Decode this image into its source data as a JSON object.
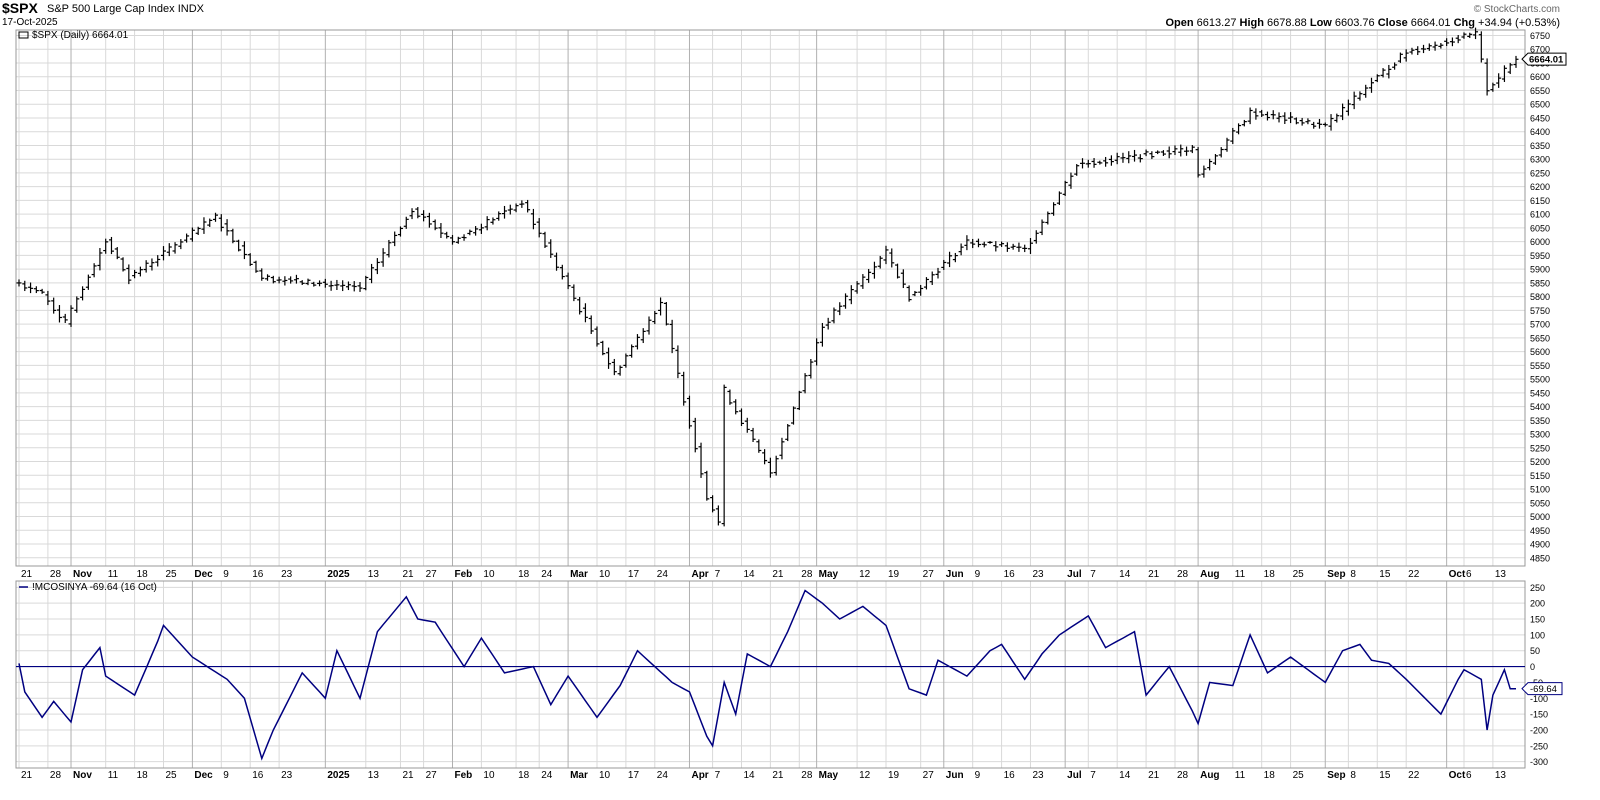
{
  "header": {
    "symbol": "$SPX",
    "name": "S&P 500 Large Cap Index",
    "exchange": "INDX",
    "date": "17-Oct-2025",
    "credit": "© StockCharts.com",
    "open_label": "Open",
    "open": "6613.27",
    "high_label": "High",
    "high": "6678.88",
    "low_label": "Low",
    "low": "6603.76",
    "close_label": "Close",
    "close": "6664.01",
    "chg_label": "Chg",
    "chg": "+34.94 (+0.53%)"
  },
  "colors": {
    "price_bars": "#000000",
    "indicator": "#000080",
    "grid": "#d9d9d9",
    "month_line": "#b0b0b0"
  },
  "chart_data": [
    {
      "type": "ohlc",
      "legend": "$SPX (Daily) 6664.01",
      "last_value_label": "6664.01",
      "y_ticks": [
        4850,
        4900,
        4950,
        5000,
        5050,
        5100,
        5150,
        5200,
        5250,
        5300,
        5350,
        5400,
        5450,
        5500,
        5550,
        5600,
        5650,
        5700,
        5750,
        5800,
        5850,
        5900,
        5950,
        6000,
        6050,
        6100,
        6150,
        6200,
        6250,
        6300,
        6350,
        6400,
        6450,
        6500,
        6550,
        6600,
        6650,
        6700,
        6750
      ],
      "ylim": [
        4820,
        6770
      ],
      "close_anchors": [
        {
          "date": "2024-10-21",
          "close": 5850
        },
        {
          "date": "2024-10-25",
          "close": 5810
        },
        {
          "date": "2024-10-31",
          "close": 5705
        },
        {
          "date": "2024-11-11",
          "close": 6005
        },
        {
          "date": "2024-11-15",
          "close": 5870
        },
        {
          "date": "2024-12-06",
          "close": 6090
        },
        {
          "date": "2024-12-18",
          "close": 5870
        },
        {
          "date": "2025-01-10",
          "close": 5830
        },
        {
          "date": "2025-01-23",
          "close": 6120
        },
        {
          "date": "2025-02-03",
          "close": 6000
        },
        {
          "date": "2025-02-19",
          "close": 6145
        },
        {
          "date": "2025-03-13",
          "close": 5520
        },
        {
          "date": "2025-03-25",
          "close": 5780
        },
        {
          "date": "2025-04-04",
          "close": 5075
        },
        {
          "date": "2025-04-08",
          "close": 4980
        },
        {
          "date": "2025-04-09",
          "close": 5460
        },
        {
          "date": "2025-04-21",
          "close": 5160
        },
        {
          "date": "2025-05-02",
          "close": 5690
        },
        {
          "date": "2025-05-12",
          "close": 5845
        },
        {
          "date": "2025-05-19",
          "close": 5960
        },
        {
          "date": "2025-05-23",
          "close": 5800
        },
        {
          "date": "2025-06-06",
          "close": 6000
        },
        {
          "date": "2025-06-20",
          "close": 5970
        },
        {
          "date": "2025-07-03",
          "close": 6280
        },
        {
          "date": "2025-07-31",
          "close": 6340
        },
        {
          "date": "2025-08-01",
          "close": 6240
        },
        {
          "date": "2025-08-14",
          "close": 6470
        },
        {
          "date": "2025-09-02",
          "close": 6420
        },
        {
          "date": "2025-09-12",
          "close": 6580
        },
        {
          "date": "2025-09-22",
          "close": 6690
        },
        {
          "date": "2025-10-08",
          "close": 6755
        },
        {
          "date": "2025-10-10",
          "close": 6555
        },
        {
          "date": "2025-10-17",
          "close": 6664
        }
      ]
    },
    {
      "type": "line",
      "legend": "!MCOSINYA -69.64 (16 Oct)",
      "last_value_label": "-69.64",
      "y_ticks": [
        -300,
        -250,
        -200,
        -150,
        -100,
        -50,
        0,
        50,
        100,
        150,
        200,
        250
      ],
      "ylim": [
        -320,
        270
      ],
      "zero_line": 0,
      "anchors": [
        {
          "date": "2024-10-21",
          "value": 10
        },
        {
          "date": "2024-10-22",
          "value": -80
        },
        {
          "date": "2024-10-25",
          "value": -160
        },
        {
          "date": "2024-10-29",
          "value": -110
        },
        {
          "date": "2024-11-01",
          "value": -175
        },
        {
          "date": "2024-11-05",
          "value": -10
        },
        {
          "date": "2024-11-08",
          "value": 60
        },
        {
          "date": "2024-11-11",
          "value": -30
        },
        {
          "date": "2024-11-18",
          "value": -90
        },
        {
          "date": "2024-11-22",
          "value": 80
        },
        {
          "date": "2024-11-25",
          "value": 130
        },
        {
          "date": "2024-12-02",
          "value": 30
        },
        {
          "date": "2024-12-10",
          "value": -40
        },
        {
          "date": "2024-12-13",
          "value": -100
        },
        {
          "date": "2024-12-18",
          "value": -290
        },
        {
          "date": "2024-12-20",
          "value": -200
        },
        {
          "date": "2024-12-27",
          "value": -20
        },
        {
          "date": "2025-01-02",
          "value": -100
        },
        {
          "date": "2025-01-06",
          "value": 50
        },
        {
          "date": "2025-01-10",
          "value": -100
        },
        {
          "date": "2025-01-15",
          "value": 110
        },
        {
          "date": "2025-01-22",
          "value": 220
        },
        {
          "date": "2025-01-24",
          "value": 150
        },
        {
          "date": "2025-01-29",
          "value": 140
        },
        {
          "date": "2025-02-05",
          "value": 0
        },
        {
          "date": "2025-02-10",
          "value": 90
        },
        {
          "date": "2025-02-14",
          "value": -20
        },
        {
          "date": "2025-02-21",
          "value": 0
        },
        {
          "date": "2025-02-26",
          "value": -120
        },
        {
          "date": "2025-03-03",
          "value": -30
        },
        {
          "date": "2025-03-10",
          "value": -160
        },
        {
          "date": "2025-03-14",
          "value": -60
        },
        {
          "date": "2025-03-19",
          "value": 50
        },
        {
          "date": "2025-03-27",
          "value": -50
        },
        {
          "date": "2025-04-01",
          "value": -80
        },
        {
          "date": "2025-04-04",
          "value": -220
        },
        {
          "date": "2025-04-07",
          "value": -250
        },
        {
          "date": "2025-04-09",
          "value": -50
        },
        {
          "date": "2025-04-11",
          "value": -150
        },
        {
          "date": "2025-04-15",
          "value": 40
        },
        {
          "date": "2025-04-21",
          "value": 0
        },
        {
          "date": "2025-04-24",
          "value": 110
        },
        {
          "date": "2025-04-29",
          "value": 240
        },
        {
          "date": "2025-05-02",
          "value": 200
        },
        {
          "date": "2025-05-07",
          "value": 150
        },
        {
          "date": "2025-05-13",
          "value": 190
        },
        {
          "date": "2025-05-19",
          "value": 130
        },
        {
          "date": "2025-05-23",
          "value": -70
        },
        {
          "date": "2025-05-28",
          "value": -90
        },
        {
          "date": "2025-05-30",
          "value": 20
        },
        {
          "date": "2025-06-06",
          "value": -30
        },
        {
          "date": "2025-06-12",
          "value": 50
        },
        {
          "date": "2025-06-16",
          "value": 70
        },
        {
          "date": "2025-06-20",
          "value": -40
        },
        {
          "date": "2025-06-25",
          "value": 40
        },
        {
          "date": "2025-06-30",
          "value": 100
        },
        {
          "date": "2025-07-07",
          "value": 160
        },
        {
          "date": "2025-07-10",
          "value": 60
        },
        {
          "date": "2025-07-17",
          "value": 110
        },
        {
          "date": "2025-07-21",
          "value": -90
        },
        {
          "date": "2025-07-25",
          "value": 0
        },
        {
          "date": "2025-07-31",
          "value": -140
        },
        {
          "date": "2025-08-01",
          "value": -180
        },
        {
          "date": "2025-08-05",
          "value": -50
        },
        {
          "date": "2025-08-11",
          "value": -60
        },
        {
          "date": "2025-08-14",
          "value": 100
        },
        {
          "date": "2025-08-19",
          "value": -20
        },
        {
          "date": "2025-08-25",
          "value": 30
        },
        {
          "date": "2025-09-02",
          "value": -50
        },
        {
          "date": "2025-09-05",
          "value": 50
        },
        {
          "date": "2025-09-10",
          "value": 70
        },
        {
          "date": "2025-09-12",
          "value": 20
        },
        {
          "date": "2025-09-17",
          "value": 10
        },
        {
          "date": "2025-09-22",
          "value": -40
        },
        {
          "date": "2025-09-30",
          "value": -150
        },
        {
          "date": "2025-10-03",
          "value": -40
        },
        {
          "date": "2025-10-06",
          "value": -10
        },
        {
          "date": "2025-10-09",
          "value": -40
        },
        {
          "date": "2025-10-10",
          "value": -200
        },
        {
          "date": "2025-10-13",
          "value": -90
        },
        {
          "date": "2025-10-15",
          "value": -10
        },
        {
          "date": "2025-10-16",
          "value": -70
        }
      ]
    }
  ],
  "x_axis": {
    "labels": [
      {
        "date": "2024-10-21",
        "text": "21"
      },
      {
        "date": "2024-10-28",
        "text": "28"
      },
      {
        "date": "2024-11-01",
        "text": "Nov",
        "month": true
      },
      {
        "date": "2024-11-11",
        "text": "11"
      },
      {
        "date": "2024-11-18",
        "text": "18"
      },
      {
        "date": "2024-11-25",
        "text": "25"
      },
      {
        "date": "2024-12-02",
        "text": "Dec",
        "month": true
      },
      {
        "date": "2024-12-09",
        "text": "9"
      },
      {
        "date": "2024-12-16",
        "text": "16"
      },
      {
        "date": "2024-12-23",
        "text": "23"
      },
      {
        "date": "2025-01-02",
        "text": "2025",
        "month": true
      },
      {
        "date": "2025-01-13",
        "text": "13"
      },
      {
        "date": "2025-01-21",
        "text": "21"
      },
      {
        "date": "2025-01-27",
        "text": "27"
      },
      {
        "date": "2025-02-03",
        "text": "Feb",
        "month": true
      },
      {
        "date": "2025-02-10",
        "text": "10"
      },
      {
        "date": "2025-02-18",
        "text": "18"
      },
      {
        "date": "2025-02-24",
        "text": "24"
      },
      {
        "date": "2025-03-03",
        "text": "Mar",
        "month": true
      },
      {
        "date": "2025-03-10",
        "text": "10"
      },
      {
        "date": "2025-03-17",
        "text": "17"
      },
      {
        "date": "2025-03-24",
        "text": "24"
      },
      {
        "date": "2025-04-01",
        "text": "Apr",
        "month": true
      },
      {
        "date": "2025-04-07",
        "text": "7"
      },
      {
        "date": "2025-04-14",
        "text": "14"
      },
      {
        "date": "2025-04-21",
        "text": "21"
      },
      {
        "date": "2025-04-28",
        "text": "28"
      },
      {
        "date": "2025-05-01",
        "text": "May",
        "month": true
      },
      {
        "date": "2025-05-12",
        "text": "12"
      },
      {
        "date": "2025-05-19",
        "text": "19"
      },
      {
        "date": "2025-05-27",
        "text": "27"
      },
      {
        "date": "2025-06-02",
        "text": "Jun",
        "month": true
      },
      {
        "date": "2025-06-09",
        "text": "9"
      },
      {
        "date": "2025-06-16",
        "text": "16"
      },
      {
        "date": "2025-06-23",
        "text": "23"
      },
      {
        "date": "2025-07-01",
        "text": "Jul",
        "month": true
      },
      {
        "date": "2025-07-07",
        "text": "7"
      },
      {
        "date": "2025-07-14",
        "text": "14"
      },
      {
        "date": "2025-07-21",
        "text": "21"
      },
      {
        "date": "2025-07-28",
        "text": "28"
      },
      {
        "date": "2025-08-01",
        "text": "Aug",
        "month": true
      },
      {
        "date": "2025-08-11",
        "text": "11"
      },
      {
        "date": "2025-08-18",
        "text": "18"
      },
      {
        "date": "2025-08-25",
        "text": "25"
      },
      {
        "date": "2025-09-02",
        "text": "Sep",
        "month": true
      },
      {
        "date": "2025-09-08",
        "text": "8"
      },
      {
        "date": "2025-09-15",
        "text": "15"
      },
      {
        "date": "2025-09-22",
        "text": "22"
      },
      {
        "date": "2025-10-01",
        "text": "Oct",
        "month": true
      },
      {
        "date": "2025-10-06",
        "text": "6"
      },
      {
        "date": "2025-10-13",
        "text": "13"
      }
    ]
  }
}
